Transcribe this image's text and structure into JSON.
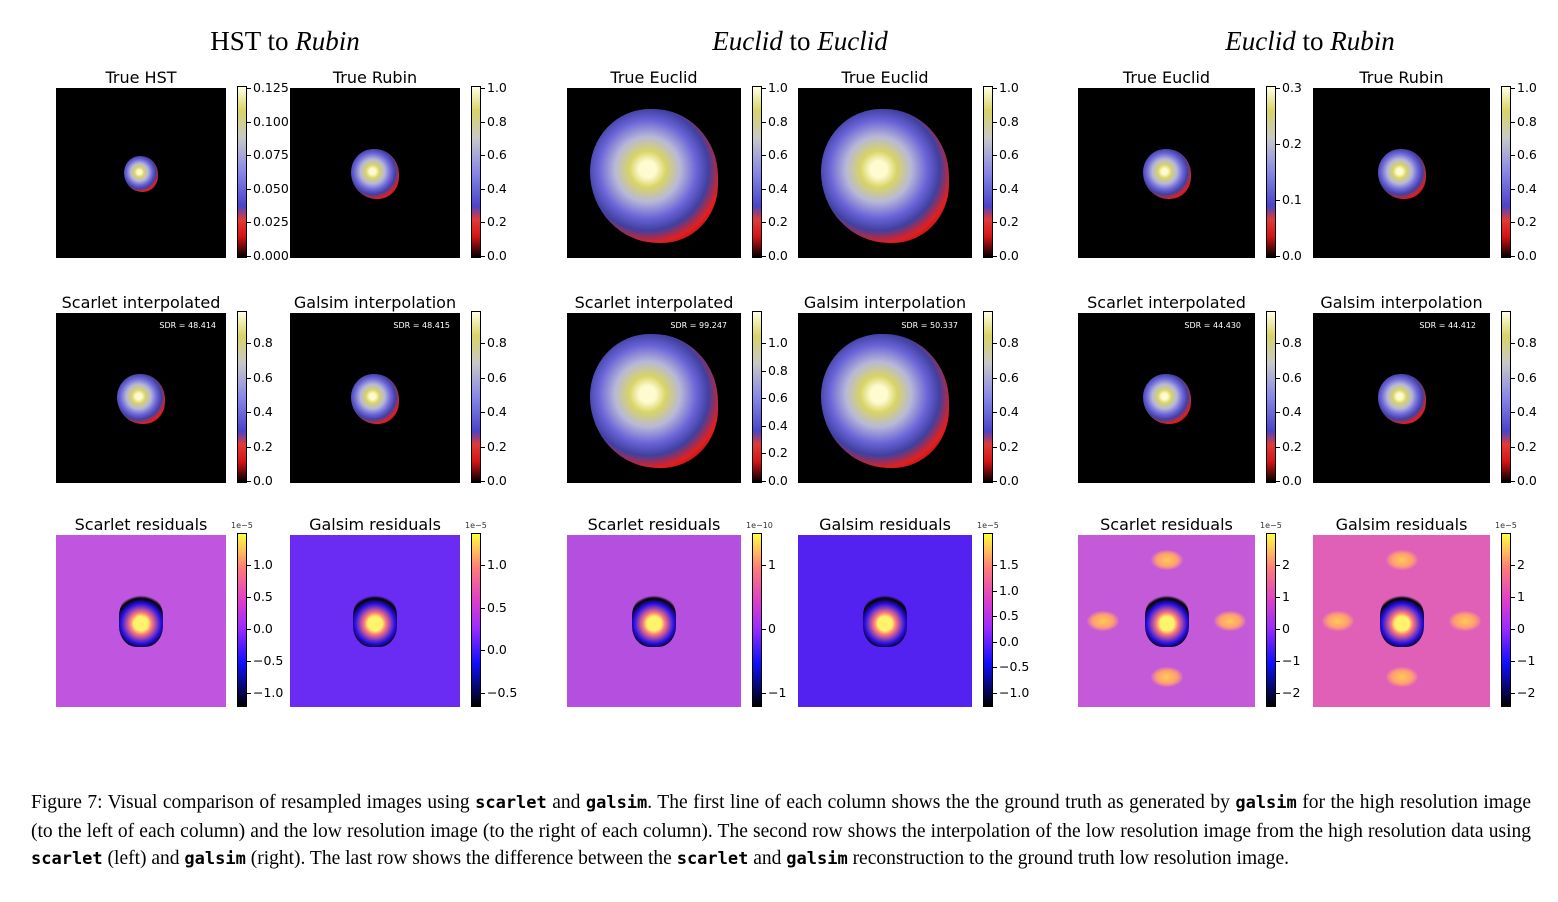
{
  "figure": {
    "groups": [
      {
        "title_a": "HST",
        "title_mid": " to ",
        "title_b": "Rubin",
        "a_italic": false,
        "b_italic": true
      },
      {
        "title_a": "Euclid",
        "title_mid": " to ",
        "title_b": "Euclid",
        "a_italic": true,
        "b_italic": true
      },
      {
        "title_a": "Euclid",
        "title_mid": " to ",
        "title_b": "Rubin",
        "a_italic": true,
        "b_italic": true
      }
    ],
    "panels": [
      {
        "title": "True HST",
        "kind": "truth",
        "size": 0.2,
        "cbar_ticks": [
          "0.125",
          "0.100",
          "0.075",
          "0.050",
          "0.025",
          "0.000"
        ]
      },
      {
        "title": "True Rubin",
        "kind": "truth",
        "size": 0.28,
        "cbar_ticks": [
          "1.0",
          "0.8",
          "0.6",
          "0.4",
          "0.2",
          "0.0"
        ]
      },
      {
        "title": "True Euclid",
        "kind": "truth",
        "size": 0.75,
        "cbar_ticks": [
          "1.0",
          "0.8",
          "0.6",
          "0.4",
          "0.2",
          "0.0"
        ]
      },
      {
        "title": "True Euclid",
        "kind": "truth",
        "size": 0.75,
        "cbar_ticks": [
          "1.0",
          "0.8",
          "0.6",
          "0.4",
          "0.2",
          "0.0"
        ]
      },
      {
        "title": "True Euclid",
        "kind": "truth",
        "size": 0.28,
        "cbar_ticks": [
          "0.3",
          "0.2",
          "0.1",
          "0.0"
        ]
      },
      {
        "title": "True Rubin",
        "kind": "truth",
        "size": 0.28,
        "cbar_ticks": [
          "1.0",
          "0.8",
          "0.6",
          "0.4",
          "0.2",
          "0.0"
        ]
      },
      {
        "title": "Scarlet interpolated",
        "kind": "interp",
        "size": 0.28,
        "sdr": "SDR = 48.414",
        "cbar_ticks": [
          "0.8",
          "0.6",
          "0.4",
          "0.2",
          "0.0"
        ]
      },
      {
        "title": "Galsim interpolation",
        "kind": "interp",
        "size": 0.28,
        "sdr": "SDR = 48.415",
        "cbar_ticks": [
          "0.8",
          "0.6",
          "0.4",
          "0.2",
          "0.0"
        ]
      },
      {
        "title": "Scarlet interpolated",
        "kind": "interp",
        "size": 0.75,
        "sdr": "SDR = 99.247",
        "cbar_ticks": [
          "1.0",
          "0.8",
          "0.6",
          "0.4",
          "0.2",
          "0.0"
        ]
      },
      {
        "title": "Galsim interpolation",
        "kind": "interp",
        "size": 0.75,
        "sdr": "SDR = 50.337",
        "cbar_ticks": [
          "0.8",
          "0.6",
          "0.4",
          "0.2",
          "0.0"
        ]
      },
      {
        "title": "Scarlet interpolated",
        "kind": "interp",
        "size": 0.28,
        "sdr": "SDR = 44.430",
        "cbar_ticks": [
          "0.8",
          "0.6",
          "0.4",
          "0.2",
          "0.0"
        ]
      },
      {
        "title": "Galsim interpolation",
        "kind": "interp",
        "size": 0.28,
        "sdr": "SDR = 44.412",
        "cbar_ticks": [
          "0.8",
          "0.6",
          "0.4",
          "0.2",
          "0.0"
        ]
      },
      {
        "title": "Scarlet residuals",
        "kind": "resid",
        "bg": "#c055e0",
        "expo": "1e−5",
        "cbar_ticks": [
          "1.0",
          "0.5",
          "0.0",
          "−0.5",
          "−1.0"
        ]
      },
      {
        "title": "Galsim residuals",
        "kind": "resid",
        "bg": "#6a2cf2",
        "expo": "1e−5",
        "cbar_ticks": [
          "1.0",
          "0.5",
          "0.0",
          "−0.5"
        ]
      },
      {
        "title": "Scarlet residuals",
        "kind": "resid",
        "bg": "#b54fe0",
        "expo": "1e−10",
        "cbar_ticks": [
          "1",
          "0",
          "−1"
        ]
      },
      {
        "title": "Galsim residuals",
        "kind": "resid",
        "bg": "#5322f0",
        "expo": "1e−5",
        "cbar_ticks": [
          "1.5",
          "1.0",
          "0.5",
          "0.0",
          "−0.5",
          "−1.0"
        ]
      },
      {
        "title": "Scarlet residuals",
        "kind": "resid",
        "bg": "#c45ad8",
        "expo": "1e−5",
        "cbar_ticks": [
          "2",
          "1",
          "0",
          "−1",
          "−2"
        ]
      },
      {
        "title": "Galsim residuals",
        "kind": "resid",
        "bg": "#e060b8",
        "expo": "1e−5",
        "cbar_ticks": [
          "2",
          "1",
          "0",
          "−1",
          "−2"
        ]
      }
    ]
  },
  "caption": {
    "p1": "Figure 7: Visual comparison of resampled images using ",
    "c1": "scarlet",
    "p2": " and ",
    "c2": "galsim",
    "p3": ". The first line of each column shows the the ground truth as generated by ",
    "c3": "galsim",
    "p4": " for the high resolution image (to the left of each column) and the low resolution image (to the right of each column). The second row shows the interpolation of the low resolution image from the high resolution data using ",
    "c4": "scarlet",
    "p5": " (left) and ",
    "c5": "galsim",
    "p6": " (right). The last row shows the difference between the ",
    "c6": "scarlet",
    "p7": " and ",
    "c7": "galsim",
    "p8": " reconstruction to the ground truth low resolution image."
  }
}
